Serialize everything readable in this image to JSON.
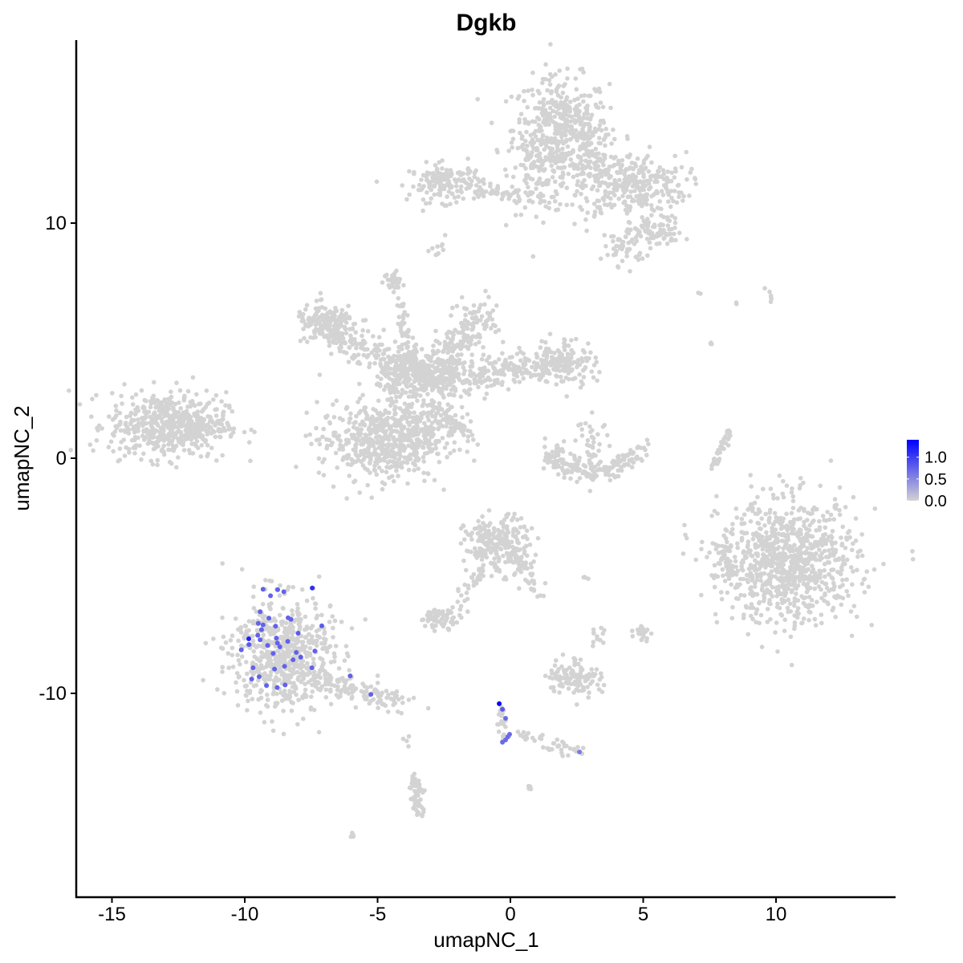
{
  "chart_data": {
    "type": "scatter",
    "title": "Dgkb",
    "xlabel": "umapNC_1",
    "ylabel": "umapNC_2",
    "xlim": [
      -16.5,
      14.5
    ],
    "ylim": [
      -18.5,
      17.7
    ],
    "x_ticks": [
      -15,
      -10,
      -5,
      0,
      5,
      10
    ],
    "y_ticks": [
      -10,
      0,
      10
    ],
    "x_tick_labels": [
      "-15",
      "-10",
      "-5",
      "0",
      "5",
      "10"
    ],
    "y_tick_labels": [
      "-10",
      "0",
      "10"
    ],
    "grid": false,
    "legend": {
      "position": "right",
      "type": "colorbar",
      "range": [
        0,
        1.4
      ],
      "ticks": [
        0,
        0.5,
        1.0
      ],
      "tick_labels": [
        "0.0",
        "0.5",
        "1.0"
      ],
      "low_color": "#D3D3D3",
      "high_color": "#0000FF"
    },
    "background_cells": [
      {
        "kind": "blob",
        "x": 1.9,
        "y": 14.0,
        "sx": 0.9,
        "sy": 1.1,
        "n": 420
      },
      {
        "kind": "blob",
        "x": 1.2,
        "y": 12.2,
        "sx": 0.6,
        "sy": 0.9,
        "n": 120
      },
      {
        "kind": "blob",
        "x": 4.6,
        "y": 11.6,
        "sx": 1.0,
        "sy": 0.7,
        "n": 280
      },
      {
        "kind": "blob",
        "x": 5.5,
        "y": 9.6,
        "sx": 0.5,
        "sy": 0.3,
        "n": 80
      },
      {
        "kind": "blob",
        "x": 4.3,
        "y": 9.0,
        "sx": 0.4,
        "sy": 0.4,
        "n": 50
      },
      {
        "kind": "blob",
        "x": 3.1,
        "y": 12.5,
        "sx": 0.5,
        "sy": 0.9,
        "n": 120
      },
      {
        "kind": "blob",
        "x": -2.4,
        "y": 11.7,
        "sx": 0.7,
        "sy": 0.4,
        "n": 160
      },
      {
        "kind": "line",
        "x1": -1.3,
        "y1": 11.3,
        "x2": 0.7,
        "y2": 11.2,
        "jitter": 0.15,
        "n": 40
      },
      {
        "kind": "blob",
        "x": -2.7,
        "y": 8.8,
        "sx": 0.15,
        "sy": 0.3,
        "n": 10
      },
      {
        "kind": "blob",
        "x": -12.9,
        "y": 1.4,
        "sx": 1.1,
        "sy": 0.7,
        "n": 520
      },
      {
        "kind": "line",
        "x1": -12.0,
        "y1": 1.4,
        "x2": -10.6,
        "y2": 1.4,
        "jitter": 0.3,
        "n": 40
      },
      {
        "kind": "blob",
        "x": -5.0,
        "y": 0.7,
        "sx": 1.1,
        "sy": 0.8,
        "n": 480
      },
      {
        "kind": "blob",
        "x": -3.3,
        "y": 1.8,
        "sx": 0.7,
        "sy": 0.9,
        "n": 220
      },
      {
        "kind": "blob",
        "x": -3.4,
        "y": 3.6,
        "sx": 0.8,
        "sy": 0.5,
        "n": 260
      },
      {
        "kind": "blob",
        "x": -6.9,
        "y": 5.7,
        "sx": 0.6,
        "sy": 0.4,
        "n": 140
      },
      {
        "kind": "line",
        "x1": -7.2,
        "y1": 5.5,
        "x2": -3.6,
        "y2": 3.8,
        "jitter": 0.35,
        "n": 180
      },
      {
        "kind": "line",
        "x1": -4.4,
        "y1": 7.6,
        "x2": -3.6,
        "y2": 3.6,
        "jitter": 0.15,
        "n": 60
      },
      {
        "kind": "blob",
        "x": -4.5,
        "y": 7.5,
        "sx": 0.2,
        "sy": 0.2,
        "n": 20
      },
      {
        "kind": "line",
        "x1": -3.0,
        "y1": 3.4,
        "x2": -1.0,
        "y2": 6.2,
        "jitter": 0.4,
        "n": 200
      },
      {
        "kind": "line",
        "x1": -2.8,
        "y1": 3.2,
        "x2": 2.0,
        "y2": 4.1,
        "jitter": 0.35,
        "n": 220
      },
      {
        "kind": "blob",
        "x": 2.0,
        "y": 4.1,
        "sx": 0.6,
        "sy": 0.5,
        "n": 140
      },
      {
        "kind": "line",
        "x1": -2.6,
        "y1": 2.0,
        "x2": -1.2,
        "y2": 0.7,
        "jitter": 0.08,
        "n": 40
      },
      {
        "kind": "arc",
        "x": 3.1,
        "y": 0.8,
        "r": 1.7,
        "a1": 200,
        "a2": 340,
        "jitter": 0.25,
        "n": 180
      },
      {
        "kind": "blob",
        "x": 3.1,
        "y": 0.6,
        "sx": 0.3,
        "sy": 0.6,
        "n": 40
      },
      {
        "kind": "line",
        "x1": 7.7,
        "y1": -0.3,
        "x2": 8.3,
        "y2": 1.2,
        "jitter": 0.08,
        "n": 40
      },
      {
        "kind": "blob",
        "x": 10.5,
        "y": -4.4,
        "sx": 1.3,
        "sy": 1.3,
        "n": 900
      },
      {
        "kind": "blob",
        "x": 8.1,
        "y": -4.5,
        "sx": 0.2,
        "sy": 0.5,
        "n": 40
      },
      {
        "kind": "blob",
        "x": -8.6,
        "y": -8.3,
        "sx": 0.95,
        "sy": 1.2,
        "n": 620
      },
      {
        "kind": "line",
        "x1": -7.5,
        "y1": -9.2,
        "x2": -4.0,
        "y2": -10.5,
        "jitter": 0.3,
        "n": 130
      },
      {
        "kind": "blob",
        "x": -0.5,
        "y": -3.7,
        "sx": 0.6,
        "sy": 0.6,
        "n": 220
      },
      {
        "kind": "line",
        "x1": 0.0,
        "y1": -4.0,
        "x2": 1.2,
        "y2": -5.7,
        "jitter": 0.2,
        "n": 50
      },
      {
        "kind": "line",
        "x1": -1.0,
        "y1": -4.5,
        "x2": -2.0,
        "y2": -6.2,
        "jitter": 0.15,
        "n": 30
      },
      {
        "kind": "blob",
        "x": -2.6,
        "y": -6.8,
        "sx": 0.4,
        "sy": 0.2,
        "n": 60
      },
      {
        "kind": "blob",
        "x": 2.4,
        "y": -9.3,
        "sx": 0.5,
        "sy": 0.4,
        "n": 120
      },
      {
        "kind": "blob",
        "x": 3.3,
        "y": -7.7,
        "sx": 0.15,
        "sy": 0.25,
        "n": 12
      },
      {
        "kind": "blob",
        "x": 4.95,
        "y": -7.4,
        "sx": 0.15,
        "sy": 0.2,
        "n": 25
      },
      {
        "kind": "line",
        "x1": 0.3,
        "y1": -11.7,
        "x2": 2.5,
        "y2": -12.5,
        "jitter": 0.15,
        "n": 40
      },
      {
        "kind": "line",
        "x1": -0.4,
        "y1": -10.6,
        "x2": -0.2,
        "y2": -12.0,
        "jitter": 0.1,
        "n": 20
      },
      {
        "kind": "line",
        "x1": -3.6,
        "y1": -13.5,
        "x2": -3.4,
        "y2": -15.2,
        "jitter": 0.12,
        "n": 60
      },
      {
        "kind": "blob",
        "x": -6.0,
        "y": -16.1,
        "sx": 0.08,
        "sy": 0.08,
        "n": 6
      },
      {
        "kind": "blob",
        "x": 0.65,
        "y": -14.1,
        "sx": 0.08,
        "sy": 0.08,
        "n": 4
      },
      {
        "kind": "blob",
        "x": -3.9,
        "y": -11.9,
        "sx": 0.08,
        "sy": 0.15,
        "n": 4
      },
      {
        "kind": "blob",
        "x": 7.1,
        "y": 7.0,
        "sx": 0.05,
        "sy": 0.05,
        "n": 2
      },
      {
        "kind": "blob",
        "x": 9.8,
        "y": 6.8,
        "sx": 0.15,
        "sy": 0.15,
        "n": 6
      },
      {
        "kind": "blob",
        "x": 8.5,
        "y": 6.6,
        "sx": 0.05,
        "sy": 0.05,
        "n": 2
      },
      {
        "kind": "blob",
        "x": 7.6,
        "y": 4.8,
        "sx": 0.06,
        "sy": 0.1,
        "n": 3
      },
      {
        "kind": "blob",
        "x": 2.8,
        "y": -5.1,
        "sx": 0.1,
        "sy": 0.05,
        "n": 4
      }
    ],
    "expressing_cells": [
      {
        "x": -9.31,
        "y": -5.57,
        "value": 0.75
      },
      {
        "x": -8.76,
        "y": -5.59,
        "value": 0.75
      },
      {
        "x": -8.53,
        "y": -5.68,
        "value": 0.75
      },
      {
        "x": -9.03,
        "y": -5.85,
        "value": 0.75
      },
      {
        "x": -9.42,
        "y": -6.53,
        "value": 0.75
      },
      {
        "x": -9.09,
        "y": -6.8,
        "value": 0.75
      },
      {
        "x": -8.37,
        "y": -6.79,
        "value": 0.75
      },
      {
        "x": -8.26,
        "y": -6.85,
        "value": 0.75
      },
      {
        "x": -7.1,
        "y": -7.13,
        "value": 0.8
      },
      {
        "x": -8.84,
        "y": -7.14,
        "value": 0.75
      },
      {
        "x": -9.49,
        "y": -7.02,
        "value": 0.75
      },
      {
        "x": -9.31,
        "y": -7.09,
        "value": 0.75
      },
      {
        "x": -9.37,
        "y": -7.29,
        "value": 0.75
      },
      {
        "x": -9.51,
        "y": -7.53,
        "value": 0.75
      },
      {
        "x": -9.42,
        "y": -7.72,
        "value": 0.75
      },
      {
        "x": -8.81,
        "y": -7.65,
        "value": 0.75
      },
      {
        "x": -7.99,
        "y": -7.44,
        "value": 0.8
      },
      {
        "x": -8.38,
        "y": -7.79,
        "value": 0.75
      },
      {
        "x": -8.77,
        "y": -7.86,
        "value": 0.75
      },
      {
        "x": -8.68,
        "y": -8.02,
        "value": 0.75
      },
      {
        "x": -9.14,
        "y": -7.96,
        "value": 0.75
      },
      {
        "x": -10.13,
        "y": -8.15,
        "value": 0.75
      },
      {
        "x": -9.84,
        "y": -7.92,
        "value": 0.8
      },
      {
        "x": -9.85,
        "y": -7.68,
        "value": 1.2
      },
      {
        "x": -8.93,
        "y": -8.3,
        "value": 0.75
      },
      {
        "x": -8.06,
        "y": -8.26,
        "value": 0.75
      },
      {
        "x": -7.36,
        "y": -8.2,
        "value": 0.75
      },
      {
        "x": -7.89,
        "y": -8.46,
        "value": 0.8
      },
      {
        "x": -8.18,
        "y": -8.57,
        "value": 0.75
      },
      {
        "x": -8.5,
        "y": -8.85,
        "value": 0.75
      },
      {
        "x": -8.88,
        "y": -8.97,
        "value": 0.75
      },
      {
        "x": -9.69,
        "y": -8.91,
        "value": 0.75
      },
      {
        "x": -7.47,
        "y": -8.91,
        "value": 0.75
      },
      {
        "x": -9.74,
        "y": -9.39,
        "value": 0.75
      },
      {
        "x": -9.46,
        "y": -9.29,
        "value": 0.75
      },
      {
        "x": -9.18,
        "y": -9.67,
        "value": 0.75
      },
      {
        "x": -8.78,
        "y": -9.75,
        "value": 0.75
      },
      {
        "x": -8.48,
        "y": -9.64,
        "value": 0.75
      },
      {
        "x": -6.03,
        "y": -9.26,
        "value": 0.75
      },
      {
        "x": -5.25,
        "y": -10.04,
        "value": 0.75
      },
      {
        "x": -7.46,
        "y": -5.52,
        "value": 1.1
      },
      {
        "x": -0.42,
        "y": -10.44,
        "value": 1.4
      },
      {
        "x": -0.3,
        "y": -10.68,
        "value": 0.8
      },
      {
        "x": -0.18,
        "y": -11.06,
        "value": 0.7
      },
      {
        "x": -0.03,
        "y": -11.74,
        "value": 0.7
      },
      {
        "x": -0.18,
        "y": -11.98,
        "value": 0.7
      },
      {
        "x": -0.3,
        "y": -12.08,
        "value": 0.7
      },
      {
        "x": -0.1,
        "y": -11.85,
        "value": 0.7
      },
      {
        "x": 2.6,
        "y": -12.49,
        "value": 0.6
      }
    ]
  }
}
